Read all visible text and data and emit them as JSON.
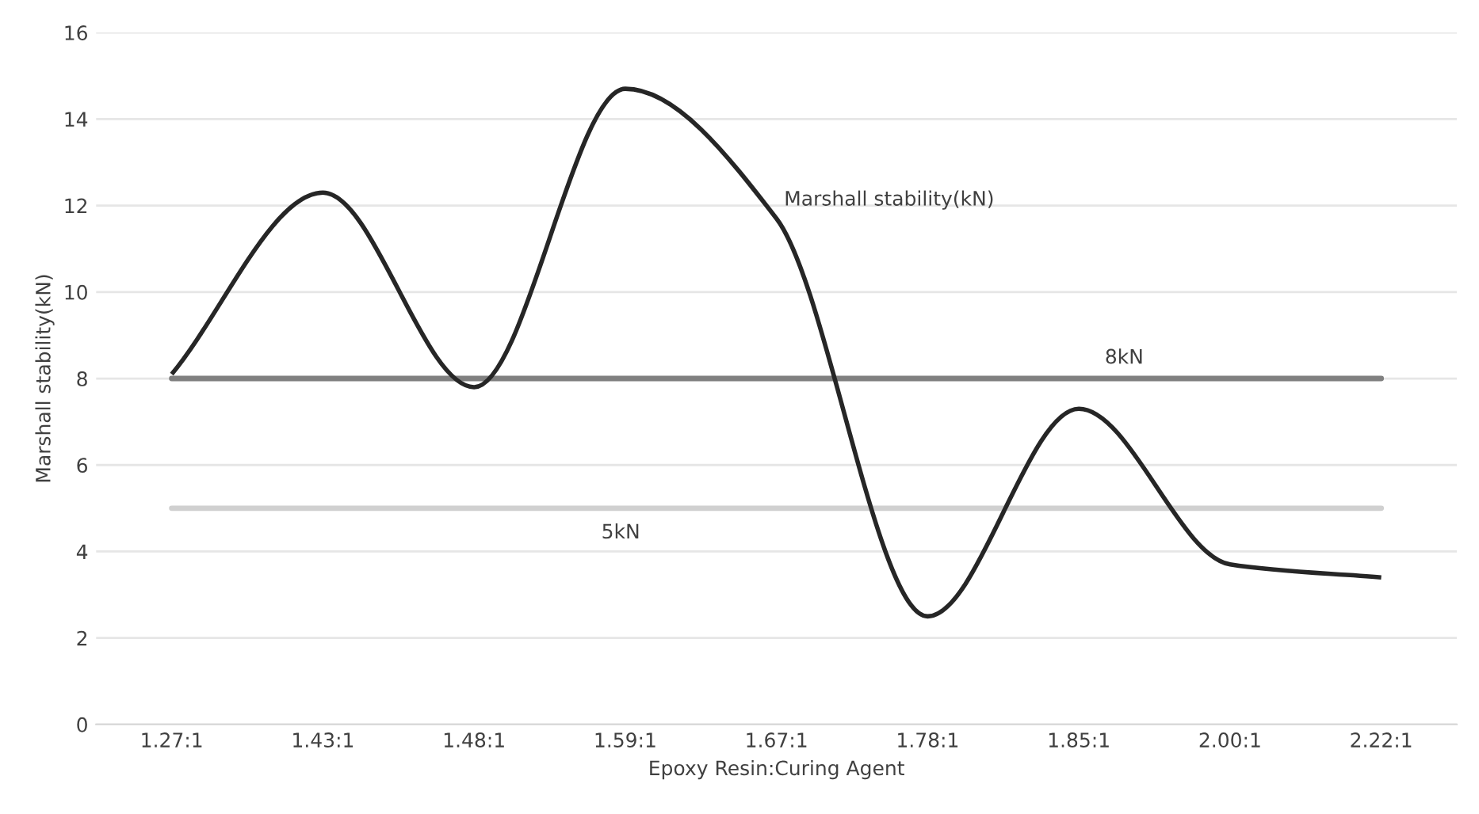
{
  "chart_data": {
    "type": "line",
    "xlabel": "Epoxy Resin:Curing Agent",
    "ylabel": "Marshall stability(kN)",
    "categories": [
      "1.27:1",
      "1.43:1",
      "1.48:1",
      "1.59:1",
      "1.67:1",
      "1.78:1",
      "1.85:1",
      "2.00:1",
      "2.22:1"
    ],
    "series": [
      {
        "name": "Marshall stability(kN)",
        "color": "#262626",
        "values": [
          8.1,
          12.3,
          7.8,
          14.7,
          11.7,
          2.5,
          7.3,
          3.7,
          3.4
        ]
      }
    ],
    "ref_lines": [
      {
        "axis": "y",
        "value": 8,
        "label": "8kN",
        "color": "#808080"
      },
      {
        "axis": "y",
        "value": 5,
        "label": "5kN",
        "color": "#d0d0d0"
      }
    ],
    "ylim": [
      0,
      16
    ],
    "yticks": [
      0,
      2,
      4,
      6,
      8,
      10,
      12,
      14,
      16
    ],
    "grid": "y",
    "legend": false,
    "marker": "none",
    "line_style": "solid"
  }
}
